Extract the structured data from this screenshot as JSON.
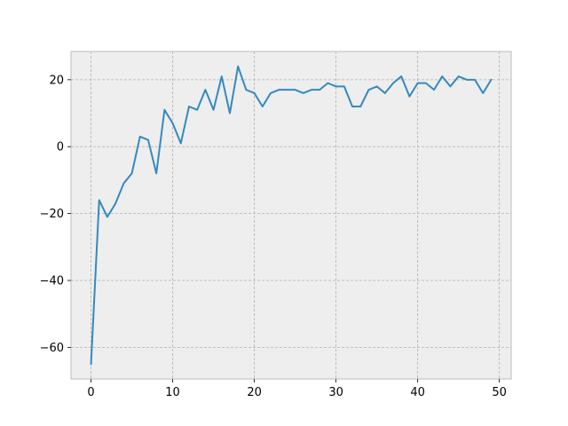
{
  "chart_data": {
    "type": "line",
    "title": "",
    "xlabel": "",
    "ylabel": "",
    "xlim": [
      -2.45,
      51.45
    ],
    "ylim": [
      -69.45,
      28.45
    ],
    "xticks": [
      0,
      10,
      20,
      30,
      40,
      50
    ],
    "yticks": [
      -60,
      -40,
      -20,
      0,
      20
    ],
    "grid": true,
    "legend": "none",
    "colors": {
      "background": "#eeeeee",
      "grid": "#b0b0b0",
      "axes_edge": "#bcbcbc",
      "series": "#348abd"
    },
    "series": [
      {
        "x": [
          0,
          1,
          2,
          3,
          4,
          5,
          6,
          7,
          8,
          9,
          10,
          11,
          12,
          13,
          14,
          15,
          16,
          17,
          18,
          19,
          20,
          21,
          22,
          23,
          24,
          25,
          26,
          27,
          28,
          29,
          30,
          31,
          32,
          33,
          34,
          35,
          36,
          37,
          38,
          39,
          40,
          41,
          42,
          43,
          44,
          45,
          46,
          47,
          48,
          49
        ],
        "values": [
          -65,
          -16,
          -21,
          -17,
          -11,
          -8,
          3,
          2,
          -8,
          11,
          7,
          1,
          12,
          11,
          17,
          11,
          21,
          10,
          24,
          17,
          16,
          12,
          16,
          17,
          17,
          17,
          16,
          17,
          17,
          19,
          18,
          18,
          12,
          12,
          17,
          18,
          16,
          19,
          21,
          15,
          19,
          19,
          17,
          21,
          18,
          21,
          20,
          20,
          16,
          20
        ]
      }
    ]
  }
}
